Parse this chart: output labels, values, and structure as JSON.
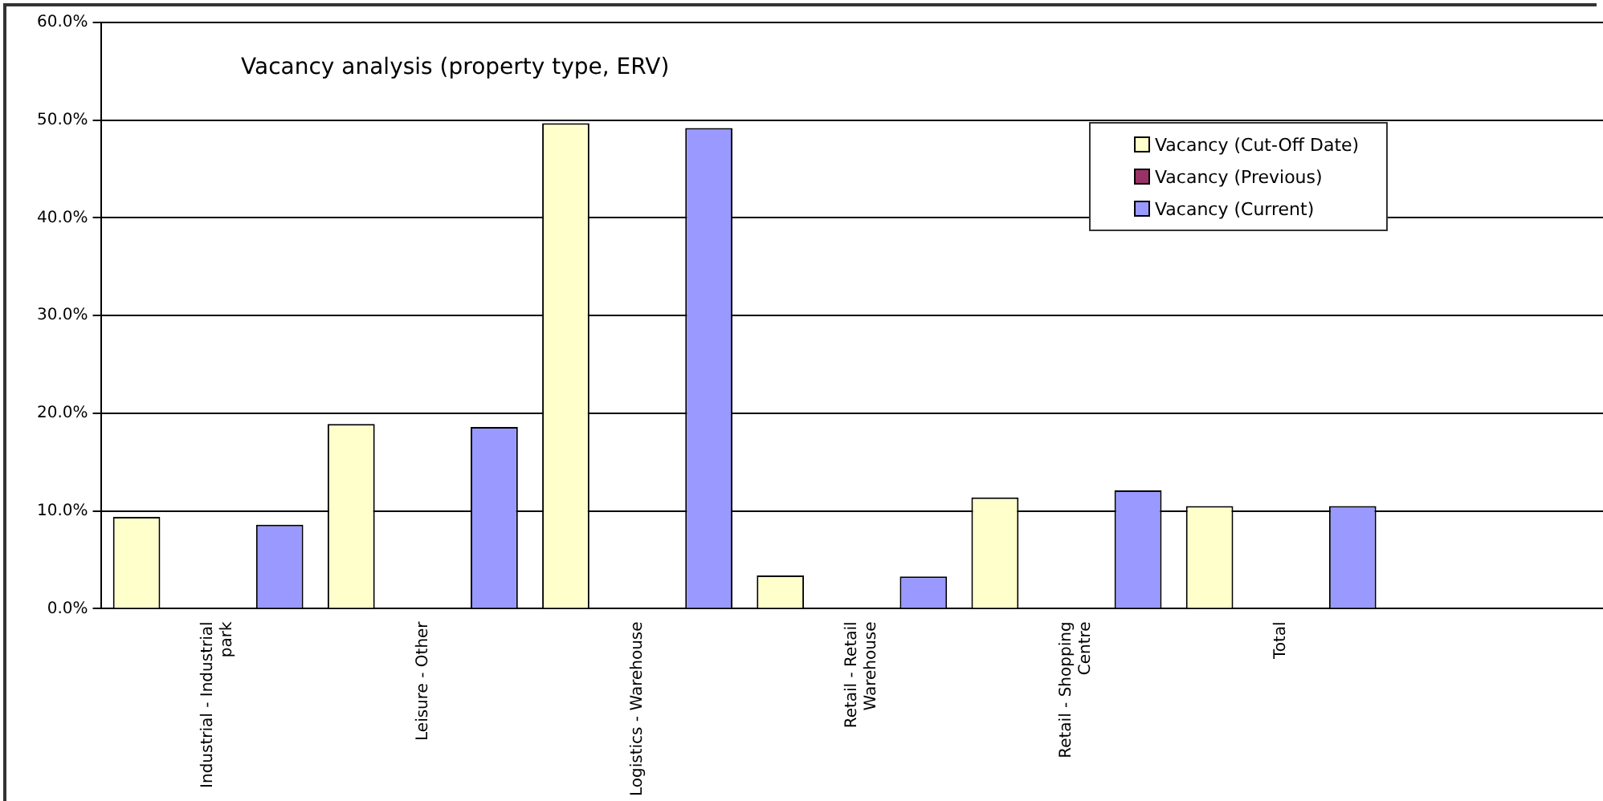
{
  "chart_data": {
    "type": "bar",
    "title": "Vacancy analysis (property type, ERV)",
    "categories": [
      "Industrial - Industrial park",
      "Leisure - Other",
      "Logistics - Warehouse",
      "Retail - Retail Warehouse",
      "Retail - Shopping Centre",
      "Total",
      null
    ],
    "series": [
      {
        "name": "Vacancy (Cut-Off Date)",
        "color": "#ffffcc",
        "values": [
          9.4,
          18.9,
          49.7,
          3.4,
          11.4,
          10.5,
          null
        ]
      },
      {
        "name": "Vacancy (Previous)",
        "color": "#993366",
        "values": [
          null,
          null,
          null,
          null,
          null,
          null,
          null
        ]
      },
      {
        "name": "Vacancy (Current)",
        "color": "#9999ff",
        "values": [
          8.6,
          18.6,
          49.2,
          3.3,
          12.1,
          10.5,
          null
        ]
      }
    ],
    "ylim": [
      0,
      60
    ],
    "yticks": [
      {
        "value": 0,
        "label": "0.0%"
      },
      {
        "value": 10,
        "label": "10.0%"
      },
      {
        "value": 20,
        "label": "20.0%"
      },
      {
        "value": 30,
        "label": "30.0%"
      },
      {
        "value": 40,
        "label": "40.0%"
      },
      {
        "value": 50,
        "label": "50.0%"
      },
      {
        "value": 60,
        "label": "60.0%"
      }
    ],
    "grid": "y",
    "legend": "top right"
  }
}
